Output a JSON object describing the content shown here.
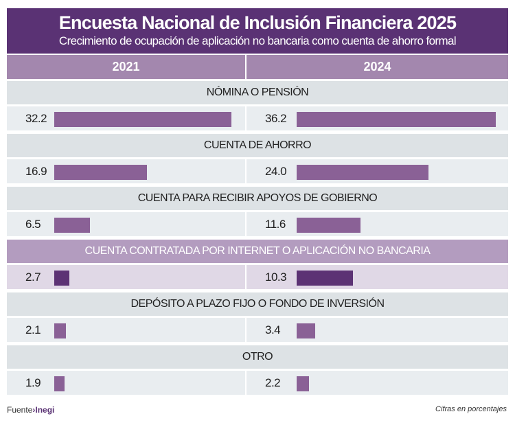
{
  "chart_data": {
    "type": "bar",
    "title": "Encuesta Nacional de Inclusión Financiera 2025",
    "subtitle": "Crecimiento de ocupación de aplicación no bancaria como cuenta de ahorro formal",
    "categories": [
      "NÓMINA O PENSIÓN",
      "CUENTA DE AHORRO",
      "CUENTA PARA RECIBIR APOYOS DE GOBIERNO",
      "CUENTA CONTRATADA POR INTERNET O APLICACIÓN NO BANCARIA",
      "DEPÓSITO A PLAZO FIJO O FONDO DE INVERSIÓN",
      "OTRO"
    ],
    "series": [
      {
        "name": "2021",
        "values": [
          "32.2",
          "16.9",
          "6.5",
          "2.7",
          "2.1",
          "1.9"
        ]
      },
      {
        "name": "2024",
        "values": [
          "36.2",
          "24.0",
          "11.6",
          "10.3",
          "3.4",
          "2.2"
        ]
      }
    ],
    "highlighted_category_index": 3,
    "unit_note": "Cifras en porcentajes",
    "colors": {
      "title_bg": "#5a3274",
      "header_bg": "#a387ae",
      "bar": "#8a6196",
      "bar_highlight": "#5c3274",
      "row_bg": "#e9edf0",
      "category_bg": "#dde2e5",
      "highlight_category_bg": "#b39cbf",
      "highlight_row_bg": "#e0d8e6"
    }
  },
  "footer": {
    "source_label": "Fuente",
    "source_name": "›Inegi",
    "note": "Cifras en porcentajes"
  }
}
